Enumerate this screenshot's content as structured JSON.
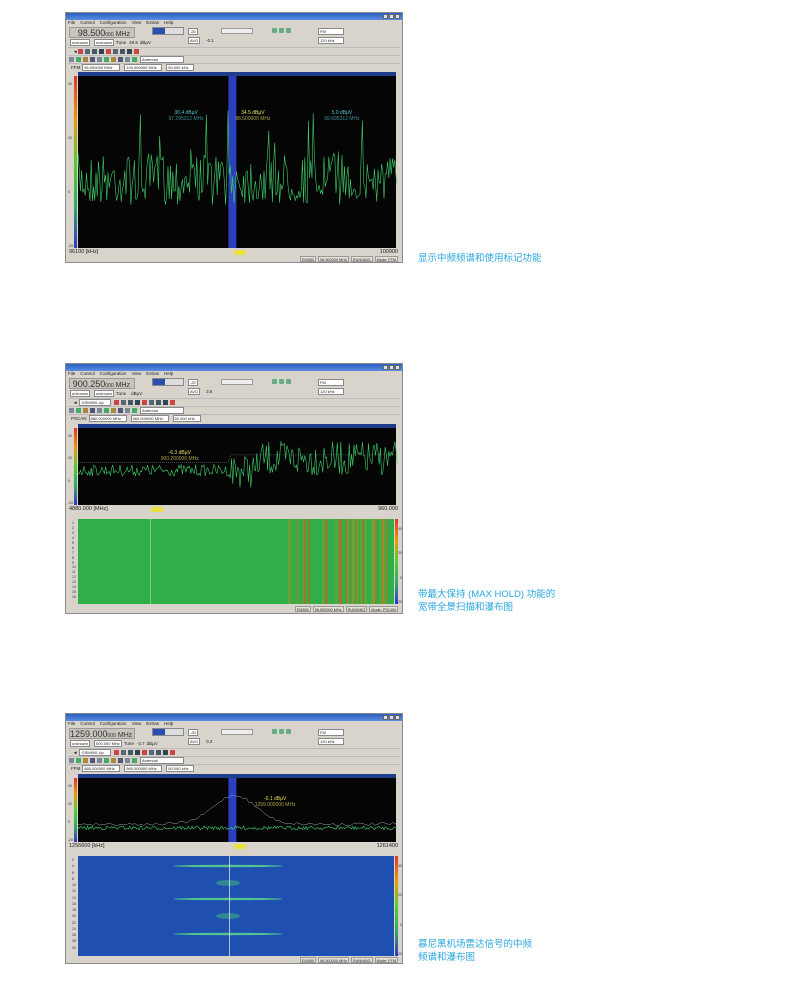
{
  "captions": [
    [
      "显示中频频谱和使用标记功能"
    ],
    [
      "带最大保持 (MAX HOLD) 功能的",
      "宽带全景扫描和瀑布图"
    ],
    [
      "慕尼黑机场雷达信号的中频",
      "频谱和瀑布图"
    ]
  ],
  "menu": [
    "File",
    "Control",
    "Configuration",
    "View",
    "Extras",
    "Help"
  ],
  "colors": {
    "caption": "#2aa6df",
    "plot_bg": "#050505",
    "trace": "#3fcf6a",
    "marker_band": "#2b3fbf",
    "waterfall_green": "#2fae4a",
    "waterfall_blue": "#1f4fb0"
  },
  "screens": [
    {
      "frequency": "98.500",
      "freq_suffix": "000",
      "unit": "MHz",
      "level": "48.5",
      "level_unit": "dBµV",
      "att": "-20",
      "agc": "AVG",
      "squelch": "-0.1",
      "mode_left": "unknown",
      "mode_mid": "unknown",
      "tune": "Tune",
      "demod": "FM",
      "bw": "120 kHz",
      "scan": "FFM",
      "start": "96.000000 MHz",
      "stop": "100.000000 MHz",
      "step": "50.000 kHz",
      "antenna": "Antennal",
      "axis_left": "96100 [kHz]",
      "axis_right": "100900",
      "axis_unit_left": "dBµV",
      "markers": [
        {
          "level": "30.4 dBµV",
          "freq": "97.295312 MHz",
          "color": "#4fc8c8"
        },
        {
          "level": "34.5 dBµV",
          "freq": "98.500000 MHz",
          "color": "#e8e060"
        },
        {
          "level": "5.0 dBµV",
          "freq": "99.695312 MHz",
          "color": "#4fc8c8"
        }
      ],
      "status": [
        "EM550",
        "96.500000 MHz",
        "RUNNING",
        "Mode: FFM"
      ],
      "yticks": [
        "40",
        "20",
        "0",
        "-20"
      ]
    },
    {
      "frequency": "900.250",
      "freq_suffix": "000",
      "unit": "MHz",
      "level": "",
      "level_unit": "dBµV",
      "att": "-20",
      "agc": "AVG",
      "squelch": "3.6",
      "mode_left": "unknown",
      "mode_mid": "unknown",
      "tune": "Tune",
      "demod": "FM",
      "bw": "120 kHz",
      "scan": "PSCAN",
      "start": "880.000000 MHz",
      "stop": "960.000000 MHz",
      "step": "50.000 kHz",
      "antenna": "Antennal",
      "preset": "GSM900-Up",
      "axis_left": "4880.000 [MHz]",
      "axis_right": "960.000",
      "markers": [
        {
          "level": "-6.3 dBµV",
          "freq": "900.200000 MHz",
          "color": "#e8e060"
        }
      ],
      "status": [
        "EM550",
        "96.500000 MHz",
        "RUNNING",
        "Mode: PSCAN"
      ],
      "yticks": [
        "40",
        "20",
        "0",
        "-20"
      ],
      "wf_yticks": [
        "1",
        "2",
        "3",
        "4",
        "5",
        "6",
        "7",
        "8",
        "9",
        "10",
        "11",
        "12",
        "13",
        "14",
        "15",
        "16"
      ],
      "wf_scale": [
        "40",
        "20",
        "0",
        "-20"
      ]
    },
    {
      "frequency": "1259.000",
      "freq_suffix": "000",
      "unit": "MHz",
      "level": "-3.7",
      "level_unit": "dBµV",
      "att": "-20",
      "agc": "AVG",
      "squelch": "0.2",
      "mode_left": "unknown",
      "mode_mid": "500.000 MHz",
      "tune": "Tune",
      "demod": "FM",
      "bw": "120 kHz",
      "scan": "FFM",
      "start": "880.000000 MHz",
      "stop": "960.000000 MHz",
      "step": "50.000 kHz",
      "antenna": "Antennal",
      "preset": "GSM900-Up",
      "axis_left": "1256600 [kHz]",
      "axis_right": "1261400",
      "markers": [
        {
          "level": "-0.1 dBµV",
          "freq": "1259.000000 MHz",
          "color": "#e8e060"
        }
      ],
      "status": [
        "EM550",
        "96.500000 MHz",
        "RUNNING",
        "Mode: FFM"
      ],
      "yticks": [
        "40",
        "20",
        "0",
        "-20"
      ],
      "wf_yticks": [
        "2",
        "4",
        "6",
        "8",
        "10",
        "12",
        "14",
        "16",
        "18",
        "20",
        "22",
        "24",
        "26",
        "28",
        "30"
      ],
      "wf_scale": [
        "40",
        "20",
        "0",
        "-20"
      ]
    }
  ]
}
